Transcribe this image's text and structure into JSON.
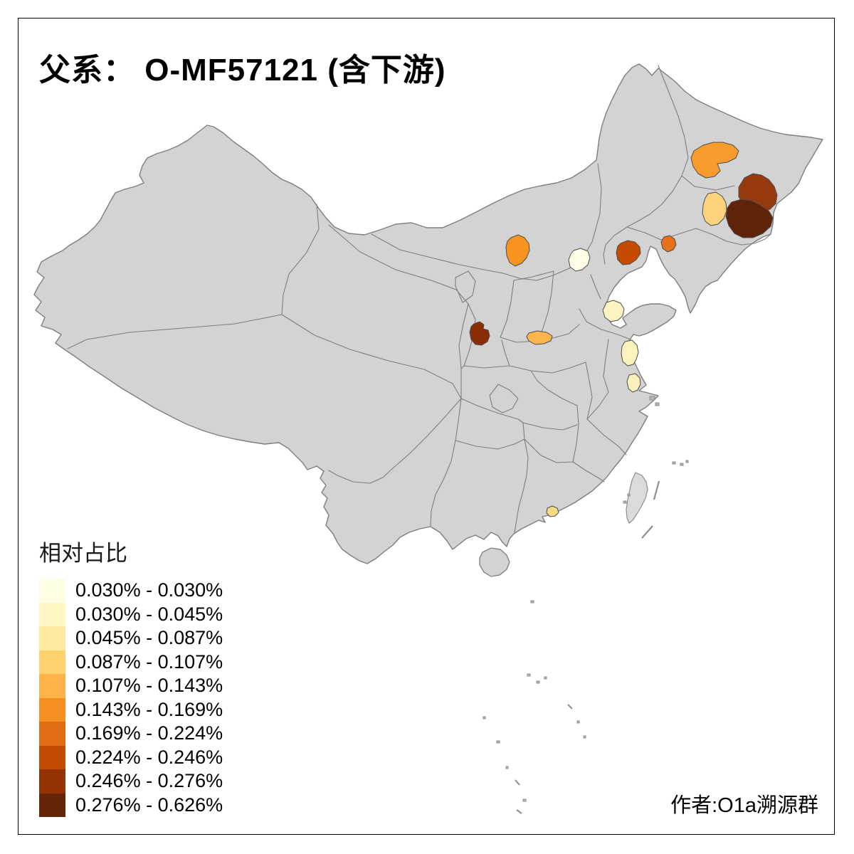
{
  "title": {
    "full": "父系： O-MF57121 (含下游)"
  },
  "attribution": "作者:O1a溯源群",
  "legend": {
    "title": "相对占比",
    "classes": [
      {
        "range": "0.030% - 0.030%",
        "color": "#FFFEE5"
      },
      {
        "range": "0.030% - 0.045%",
        "color": "#FFF7C2"
      },
      {
        "range": "0.045% - 0.087%",
        "color": "#FEE99F"
      },
      {
        "range": "0.087% - 0.107%",
        "color": "#FDD26E"
      },
      {
        "range": "0.107% - 0.143%",
        "color": "#FDB348"
      },
      {
        "range": "0.143% - 0.169%",
        "color": "#F59123"
      },
      {
        "range": "0.169% - 0.224%",
        "color": "#E06D13"
      },
      {
        "range": "0.224% - 0.246%",
        "color": "#C44B02"
      },
      {
        "range": "0.246% - 0.276%",
        "color": "#953304"
      },
      {
        "range": "0.276% - 0.626%",
        "color": "#662506"
      }
    ]
  },
  "map": {
    "land_color": "#D3D3D3",
    "island_color": "#DBDBDB",
    "boundary_color": "#7E7E7E",
    "region_stroke": "#4D4D4D",
    "sea_color": "#FFFFFF",
    "regions": [
      {
        "id": "beijing",
        "color": "#FFFDE5",
        "range": "0.030% - 0.030%"
      },
      {
        "id": "shandong",
        "color": "#FCF3C2",
        "range": "0.030% - 0.045%"
      },
      {
        "id": "jiangsu-north",
        "color": "#FBF2BE",
        "range": "0.030% - 0.045%"
      },
      {
        "id": "jiangsu-south",
        "color": "#FAF0BC",
        "range": "0.030% - 0.045%"
      },
      {
        "id": "guangdong-coastal",
        "color": "#FBDA84",
        "range": "0.045% - 0.087%"
      },
      {
        "id": "jilin-central",
        "color": "#FCD27C",
        "range": "0.087% - 0.107%"
      },
      {
        "id": "henan-central",
        "color": "#FDB44C",
        "range": "0.107% - 0.143%"
      },
      {
        "id": "heilongjiang-suihua",
        "color": "#F89B2E",
        "range": "0.143% - 0.169%"
      },
      {
        "id": "innermongolia-wulanchabu",
        "color": "#F79420",
        "range": "0.143% - 0.169%"
      },
      {
        "id": "liaoning-central",
        "color": "#E8701A",
        "range": "0.169% - 0.224%"
      },
      {
        "id": "liaoning-west",
        "color": "#C54A02",
        "range": "0.224% - 0.246%"
      },
      {
        "id": "shaanxi-central",
        "color": "#8B2D04",
        "range": "0.246% - 0.276%"
      },
      {
        "id": "northeast-upper",
        "color": "#963A0D",
        "range": "0.246% - 0.276%"
      },
      {
        "id": "northeast-darkest",
        "color": "#5E2309",
        "range": "0.276% - 0.626%"
      }
    ]
  }
}
